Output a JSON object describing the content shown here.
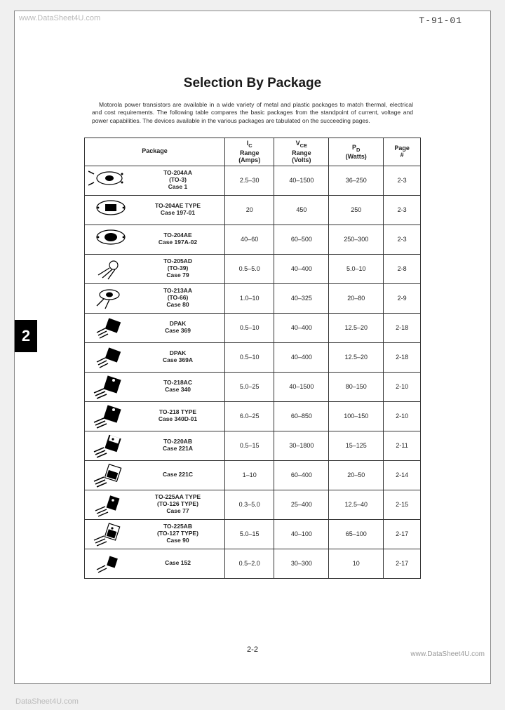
{
  "doc_id": "T-91-01",
  "watermarks": {
    "tl": "www.DataSheet4U.com",
    "br": "www.DataSheet4U.com",
    "bl": "DataSheet4U.com"
  },
  "title": "Selection By Package",
  "intro": "Motorola power transistors are available in a wide variety of metal and plastic packages to match thermal, electrical and cost requirements. The following table compares the basic packages from the standpoint of current, voltage and power capabilities. The devices available in the various packages are tabulated on the succeeding pages.",
  "side_tab": "2",
  "page_number": "2-2",
  "table": {
    "columns": [
      {
        "label": "Package"
      },
      {
        "label_l1": "I",
        "label_sub1": "C",
        "label_l2": "Range",
        "label_l3": "(Amps)"
      },
      {
        "label_l1": "V",
        "label_sub1": "CE",
        "label_l2": "Range",
        "label_l3": "(Volts)"
      },
      {
        "label_l1": "P",
        "label_sub1": "D",
        "label_l2": "(Watts)"
      },
      {
        "label_l1": "Page",
        "label_l2": "#"
      }
    ],
    "rows": [
      {
        "icon": "to3",
        "pkg_l1": "TO-204AA",
        "pkg_l2": "(TO-3)",
        "pkg_l3": "Case 1",
        "ic": "2.5–30",
        "vce": "40–1500",
        "pd": "36–250",
        "page": "2-3"
      },
      {
        "icon": "to3b",
        "pkg_l1": "TO-204AE TYPE",
        "pkg_l2": "Case 197-01",
        "pkg_l3": "",
        "ic": "20",
        "vce": "450",
        "pd": "250",
        "page": "2-3"
      },
      {
        "icon": "to3c",
        "pkg_l1": "TO-204AE",
        "pkg_l2": "Case 197A-02",
        "pkg_l3": "",
        "ic": "40–60",
        "vce": "60–500",
        "pd": "250–300",
        "page": "2-3"
      },
      {
        "icon": "to39",
        "pkg_l1": "TO-205AD",
        "pkg_l2": "(TO-39)",
        "pkg_l3": "Case 79",
        "ic": "0.5–5.0",
        "vce": "40–400",
        "pd": "5.0–10",
        "page": "2-8"
      },
      {
        "icon": "to66",
        "pkg_l1": "TO-213AA",
        "pkg_l2": "(TO-66)",
        "pkg_l3": "Case 80",
        "ic": "1.0–10",
        "vce": "40–325",
        "pd": "20–80",
        "page": "2-9"
      },
      {
        "icon": "dpak",
        "pkg_l1": "DPAK",
        "pkg_l2": "Case 369",
        "pkg_l3": "",
        "ic": "0.5–10",
        "vce": "40–400",
        "pd": "12.5–20",
        "page": "2-18"
      },
      {
        "icon": "dpak",
        "pkg_l1": "DPAK",
        "pkg_l2": "Case 369A",
        "pkg_l3": "",
        "ic": "0.5–10",
        "vce": "40–400",
        "pd": "12.5–20",
        "page": "2-18"
      },
      {
        "icon": "to218",
        "pkg_l1": "TO-218AC",
        "pkg_l2": "Case 340",
        "pkg_l3": "",
        "ic": "5.0–25",
        "vce": "40–1500",
        "pd": "80–150",
        "page": "2-10"
      },
      {
        "icon": "to218",
        "pkg_l1": "TO-218 TYPE",
        "pkg_l2": "Case 340D-01",
        "pkg_l3": "",
        "ic": "6.0–25",
        "vce": "60–850",
        "pd": "100–150",
        "page": "2-10"
      },
      {
        "icon": "to220",
        "pkg_l1": "TO-220AB",
        "pkg_l2": "Case 221A",
        "pkg_l3": "",
        "ic": "0.5–15",
        "vce": "30–1800",
        "pd": "15–125",
        "page": "2-11"
      },
      {
        "icon": "to220b",
        "pkg_l1": "",
        "pkg_l2": "Case 221C",
        "pkg_l3": "",
        "ic": "1–10",
        "vce": "60–400",
        "pd": "20–50",
        "page": "2-14"
      },
      {
        "icon": "to126",
        "pkg_l1": "TO-225AA TYPE",
        "pkg_l2": "(TO-126 TYPE)",
        "pkg_l3": "Case 77",
        "ic": "0.3–5.0",
        "vce": "25–400",
        "pd": "12.5–40",
        "page": "2-15"
      },
      {
        "icon": "to127",
        "pkg_l1": "TO-225AB",
        "pkg_l2": "(TO-127 TYPE)",
        "pkg_l3": "Case 90",
        "ic": "5.0–15",
        "vce": "40–100",
        "pd": "65–100",
        "page": "2-17"
      },
      {
        "icon": "case152",
        "pkg_l1": "",
        "pkg_l2": "Case 152",
        "pkg_l3": "",
        "ic": "0.5–2.0",
        "vce": "30–300",
        "pd": "10",
        "page": "2-17"
      }
    ],
    "col_widths": [
      "200px",
      "60px",
      "60px",
      "60px",
      "48px"
    ],
    "border_color": "#333333",
    "font_size_body": 9,
    "font_size_label": 8.5
  }
}
